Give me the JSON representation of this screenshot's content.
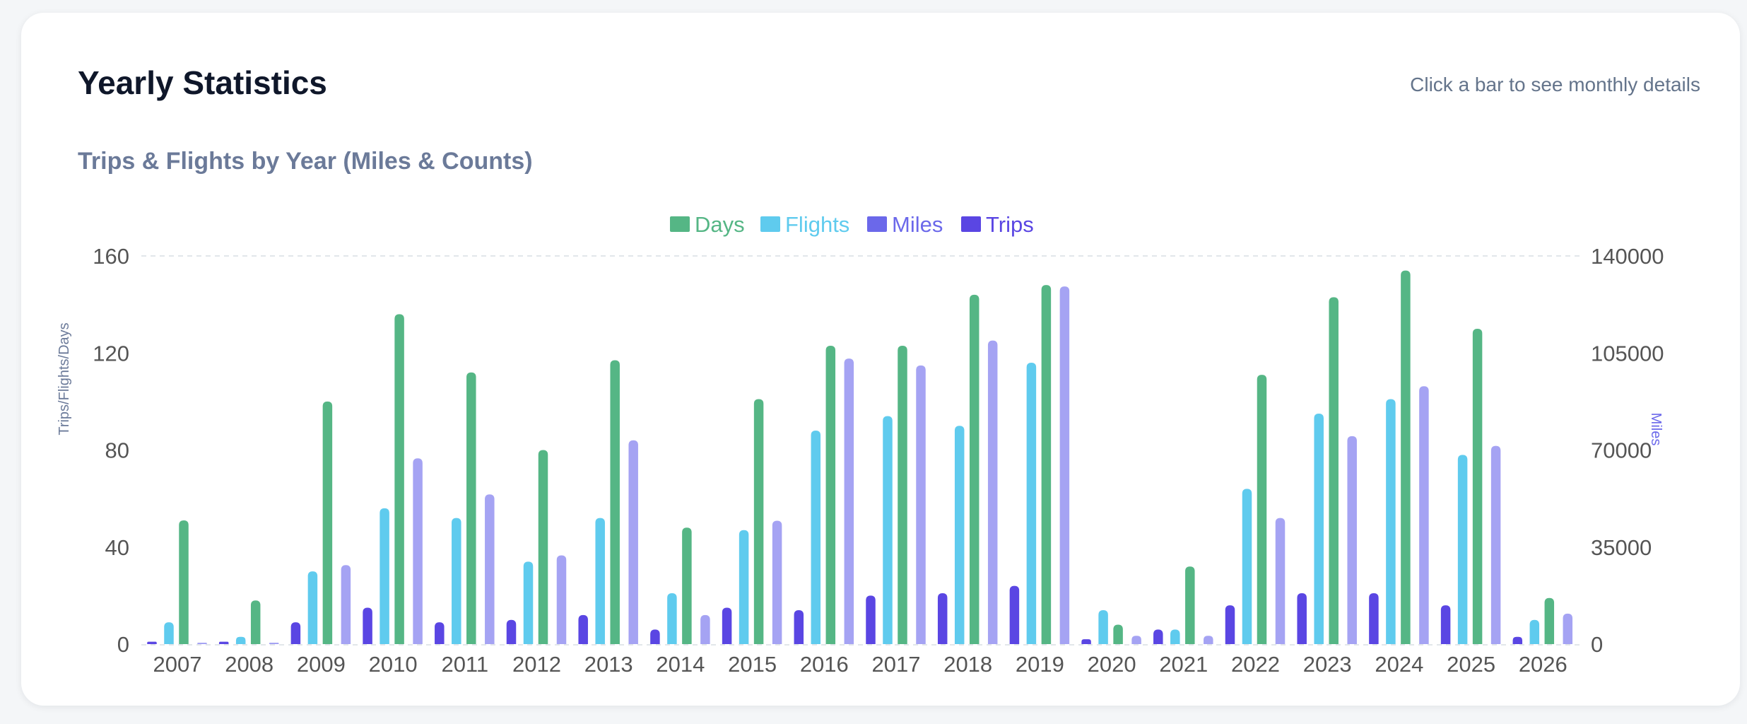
{
  "header": {
    "title": "Yearly Statistics",
    "hint": "Click a bar to see monthly details"
  },
  "colors": {
    "days": "#55b685",
    "flights": "#5fcbee",
    "miles": "#a5a3f3",
    "trips": "#5a46e3",
    "legend_miles": "#6b68ea",
    "axis_text": "#555555",
    "left_axis_title": "#6b7a99",
    "right_axis_title": "#6b68ea",
    "grid": "#e2e6ea"
  },
  "chart_data": {
    "type": "bar",
    "title": "Trips & Flights by Year (Miles & Counts)",
    "categories": [
      "2007",
      "2008",
      "2009",
      "2010",
      "2011",
      "2012",
      "2013",
      "2014",
      "2015",
      "2016",
      "2017",
      "2018",
      "2019",
      "2020",
      "2021",
      "2022",
      "2023",
      "2024",
      "2025",
      "2026"
    ],
    "series": [
      {
        "name": "Trips",
        "axis": "left",
        "values": [
          1,
          1,
          9,
          15,
          9,
          10,
          12,
          6,
          15,
          14,
          20,
          21,
          24,
          2,
          6,
          16,
          21,
          21,
          16,
          3
        ]
      },
      {
        "name": "Flights",
        "axis": "left",
        "values": [
          9,
          3,
          30,
          56,
          52,
          34,
          52,
          21,
          47,
          88,
          94,
          90,
          116,
          14,
          6,
          64,
          95,
          101,
          78,
          10
        ]
      },
      {
        "name": "Days",
        "axis": "left",
        "values": [
          51,
          18,
          100,
          136,
          112,
          80,
          117,
          48,
          101,
          123,
          123,
          144,
          148,
          8,
          32,
          111,
          143,
          154,
          130,
          19
        ]
      },
      {
        "name": "Miles",
        "axis": "right",
        "values": [
          0,
          0,
          28500,
          67000,
          54000,
          32000,
          73500,
          10500,
          44500,
          103000,
          100500,
          109500,
          129000,
          3000,
          3000,
          45500,
          75000,
          93000,
          71500,
          11000
        ]
      }
    ],
    "legend": [
      "Days",
      "Flights",
      "Miles",
      "Trips"
    ],
    "legend_position": "top-center",
    "ylabel": "Trips/Flights/Days",
    "ylabel_right": "Miles",
    "ylim": [
      0,
      160
    ],
    "yticks": [
      0,
      40,
      80,
      120,
      160
    ],
    "ylim_right": [
      0,
      140000
    ],
    "yticks_right": [
      0,
      35000,
      70000,
      105000,
      140000
    ],
    "grid": "top-line-dashed"
  }
}
